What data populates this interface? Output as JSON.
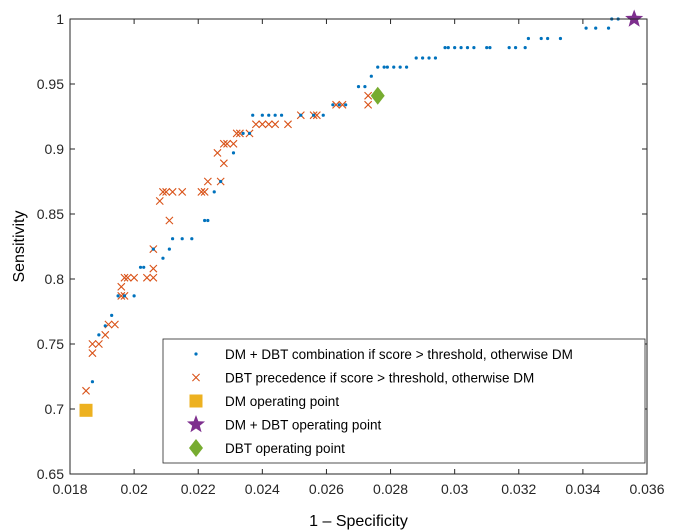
{
  "chart_data": {
    "type": "scatter",
    "title": "",
    "xlabel": "1 – Specificity",
    "ylabel": "Sensitivity",
    "xlim": [
      0.018,
      0.036
    ],
    "ylim": [
      0.65,
      1.0
    ],
    "x_ticks": [
      "0.018",
      "0.02",
      "0.022",
      "0.024",
      "0.026",
      "0.028",
      "0.03",
      "0.032",
      "0.034",
      "0.036"
    ],
    "y_ticks": [
      "0.65",
      "0.7",
      "0.75",
      "0.8",
      "0.85",
      "0.9",
      "0.95",
      "1"
    ],
    "grid": false,
    "legend_position": "bottom-right",
    "series": [
      {
        "name": "DM + DBT combination if score > threshold, otherwise DM",
        "marker": "dot",
        "color": "#0072BD",
        "points": [
          [
            0.0187,
            0.721
          ],
          [
            0.0189,
            0.757
          ],
          [
            0.0191,
            0.764
          ],
          [
            0.0193,
            0.772
          ],
          [
            0.0195,
            0.787
          ],
          [
            0.0197,
            0.787
          ],
          [
            0.02,
            0.787
          ],
          [
            0.0202,
            0.809
          ],
          [
            0.0203,
            0.809
          ],
          [
            0.0206,
            0.823
          ],
          [
            0.0209,
            0.816
          ],
          [
            0.0211,
            0.823
          ],
          [
            0.0212,
            0.831
          ],
          [
            0.0215,
            0.831
          ],
          [
            0.0218,
            0.831
          ],
          [
            0.0222,
            0.845
          ],
          [
            0.0223,
            0.845
          ],
          [
            0.0225,
            0.867
          ],
          [
            0.0227,
            0.875
          ],
          [
            0.0231,
            0.897
          ],
          [
            0.0234,
            0.912
          ],
          [
            0.0236,
            0.912
          ],
          [
            0.0237,
            0.926
          ],
          [
            0.024,
            0.926
          ],
          [
            0.0242,
            0.926
          ],
          [
            0.0244,
            0.926
          ],
          [
            0.0246,
            0.926
          ],
          [
            0.0252,
            0.926
          ],
          [
            0.0256,
            0.926
          ],
          [
            0.0259,
            0.926
          ],
          [
            0.0262,
            0.934
          ],
          [
            0.0264,
            0.934
          ],
          [
            0.0266,
            0.934
          ],
          [
            0.027,
            0.948
          ],
          [
            0.0272,
            0.948
          ],
          [
            0.0274,
            0.956
          ],
          [
            0.0276,
            0.963
          ],
          [
            0.0278,
            0.963
          ],
          [
            0.0279,
            0.963
          ],
          [
            0.0281,
            0.963
          ],
          [
            0.0283,
            0.963
          ],
          [
            0.0285,
            0.963
          ],
          [
            0.0288,
            0.97
          ],
          [
            0.029,
            0.97
          ],
          [
            0.0292,
            0.97
          ],
          [
            0.0294,
            0.97
          ],
          [
            0.0297,
            0.978
          ],
          [
            0.0298,
            0.978
          ],
          [
            0.03,
            0.978
          ],
          [
            0.0302,
            0.978
          ],
          [
            0.0304,
            0.978
          ],
          [
            0.0306,
            0.978
          ],
          [
            0.031,
            0.978
          ],
          [
            0.0311,
            0.978
          ],
          [
            0.0317,
            0.978
          ],
          [
            0.0319,
            0.978
          ],
          [
            0.0322,
            0.978
          ],
          [
            0.0323,
            0.985
          ],
          [
            0.0327,
            0.985
          ],
          [
            0.0329,
            0.985
          ],
          [
            0.0333,
            0.985
          ],
          [
            0.0341,
            0.993
          ],
          [
            0.0344,
            0.993
          ],
          [
            0.0348,
            0.993
          ],
          [
            0.0349,
            1.0
          ],
          [
            0.0351,
            1.0
          ]
        ]
      },
      {
        "name": "DBT precedence if score > threshold, otherwise DM",
        "marker": "x",
        "color": "#D95319",
        "points": [
          [
            0.0185,
            0.714
          ],
          [
            0.0187,
            0.743
          ],
          [
            0.0187,
            0.75
          ],
          [
            0.0189,
            0.75
          ],
          [
            0.0191,
            0.757
          ],
          [
            0.0192,
            0.765
          ],
          [
            0.0194,
            0.765
          ],
          [
            0.0196,
            0.787
          ],
          [
            0.0196,
            0.794
          ],
          [
            0.0197,
            0.787
          ],
          [
            0.0197,
            0.801
          ],
          [
            0.0198,
            0.801
          ],
          [
            0.02,
            0.801
          ],
          [
            0.0204,
            0.801
          ],
          [
            0.0206,
            0.801
          ],
          [
            0.0206,
            0.808
          ],
          [
            0.0206,
            0.823
          ],
          [
            0.0208,
            0.86
          ],
          [
            0.0209,
            0.867
          ],
          [
            0.021,
            0.867
          ],
          [
            0.0211,
            0.845
          ],
          [
            0.0212,
            0.867
          ],
          [
            0.0215,
            0.867
          ],
          [
            0.0221,
            0.867
          ],
          [
            0.0222,
            0.867
          ],
          [
            0.0223,
            0.875
          ],
          [
            0.0226,
            0.897
          ],
          [
            0.0227,
            0.875
          ],
          [
            0.0228,
            0.904
          ],
          [
            0.0228,
            0.889
          ],
          [
            0.0229,
            0.904
          ],
          [
            0.0231,
            0.904
          ],
          [
            0.0232,
            0.912
          ],
          [
            0.0233,
            0.912
          ],
          [
            0.0236,
            0.912
          ],
          [
            0.0238,
            0.919
          ],
          [
            0.024,
            0.919
          ],
          [
            0.0242,
            0.919
          ],
          [
            0.0244,
            0.919
          ],
          [
            0.0248,
            0.919
          ],
          [
            0.0252,
            0.926
          ],
          [
            0.0256,
            0.926
          ],
          [
            0.0257,
            0.926
          ],
          [
            0.0263,
            0.934
          ],
          [
            0.0265,
            0.934
          ],
          [
            0.0273,
            0.934
          ],
          [
            0.0273,
            0.941
          ]
        ]
      },
      {
        "name": "DM operating point",
        "marker": "square",
        "color": "#EDB120",
        "points": [
          [
            0.0185,
            0.699
          ]
        ]
      },
      {
        "name": "DM + DBT operating point",
        "marker": "star",
        "color": "#7E2F8E",
        "points": [
          [
            0.0356,
            1.0
          ]
        ]
      },
      {
        "name": "DBT operating point",
        "marker": "diamond",
        "color": "#77AC30",
        "points": [
          [
            0.0276,
            0.941
          ]
        ]
      }
    ]
  }
}
